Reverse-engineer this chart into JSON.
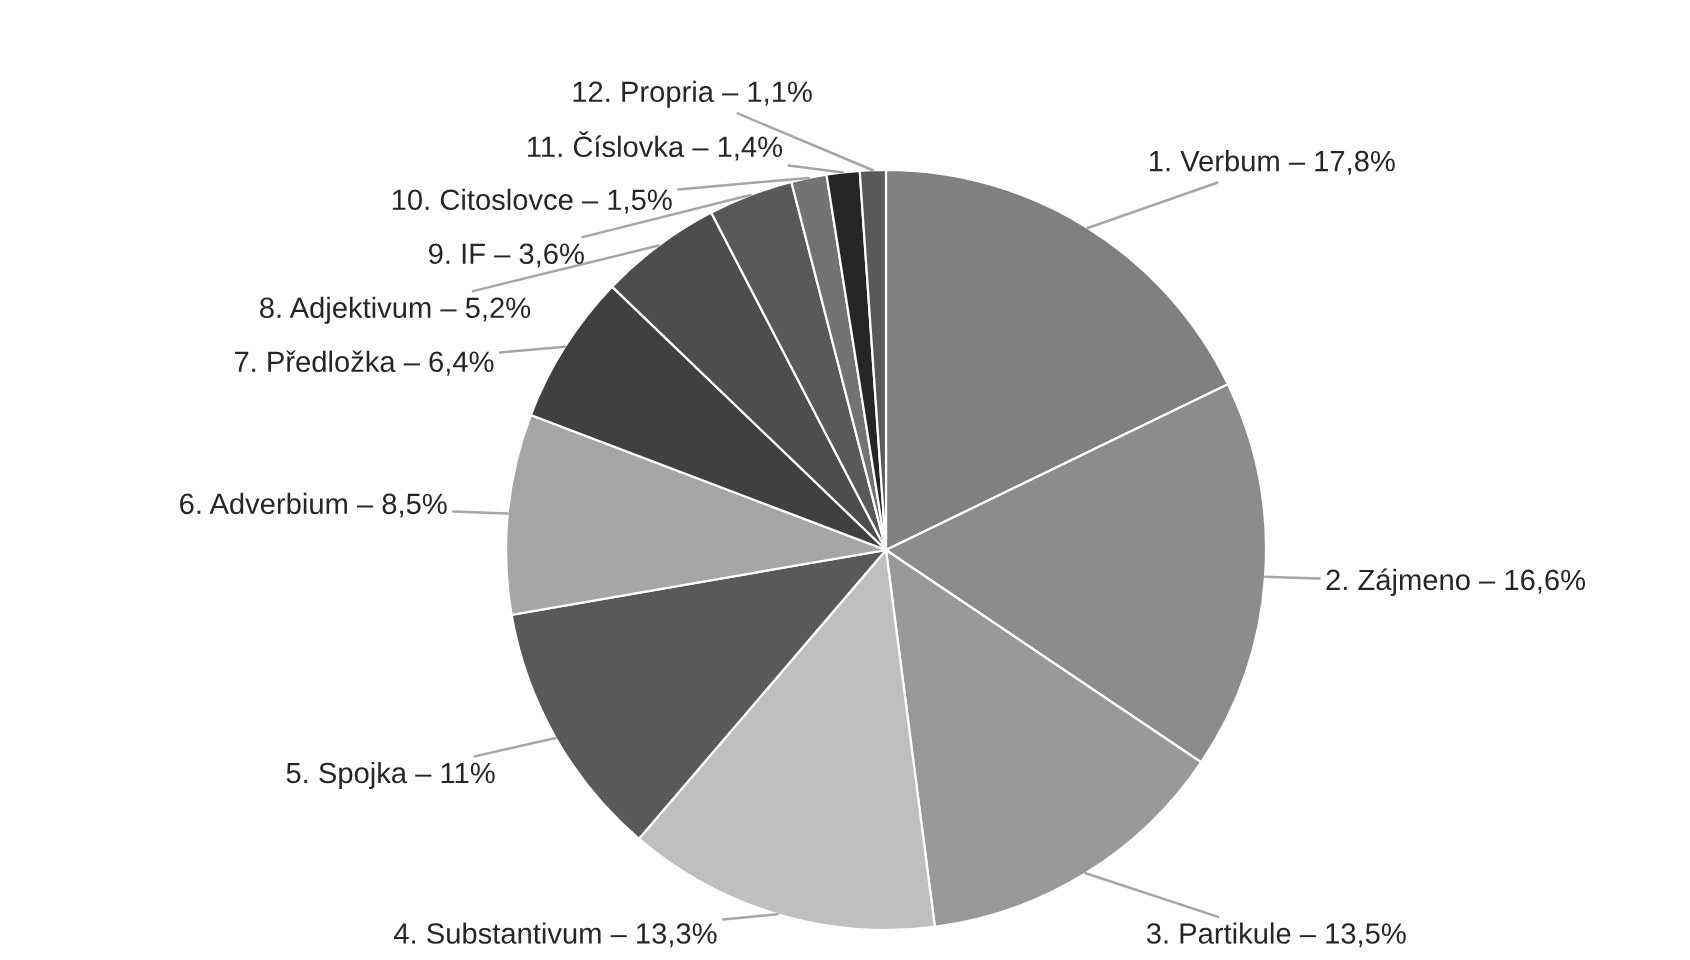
{
  "chart_data": {
    "type": "pie",
    "categories": [
      "1. Verbum – 17,8%",
      "2. Zájmeno – 16,6%",
      "3. Partikule – 13,5%",
      "4. Substantivum – 13,3%",
      "5. Spojka – 11%",
      "6. Adverbium – 8,5%",
      "7. Předložka – 6,4%",
      "8. Adjektivum – 5,2%",
      "9. IF – 3,6%",
      "10. Citoslovce – 1,5%",
      "11. Číslovka – 1,4%",
      "12. Propria – 1,1%"
    ],
    "values": [
      17.8,
      16.6,
      13.5,
      13.3,
      11,
      8.5,
      6.4,
      5.2,
      3.6,
      1.5,
      1.4,
      1.1
    ],
    "colors": [
      "#808080",
      "#8c8c8c",
      "#999999",
      "#bfbfbf",
      "#595959",
      "#a6a6a6",
      "#404040",
      "#4d4d4d",
      "#595959",
      "#737373",
      "#262626",
      "#595959"
    ]
  }
}
